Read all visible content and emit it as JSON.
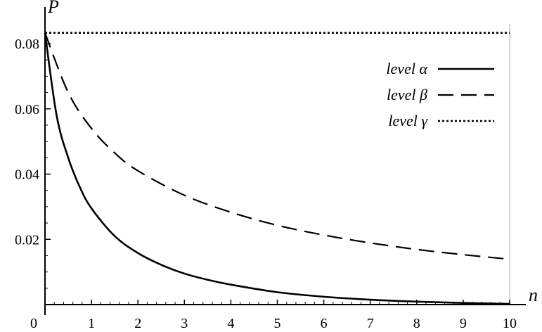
{
  "chart_data": {
    "type": "line",
    "xlabel": "n",
    "ylabel": "P",
    "xlim": [
      0,
      10
    ],
    "ylim": [
      0,
      0.085
    ],
    "x_ticks": [
      "0",
      "1",
      "2",
      "3",
      "4",
      "5",
      "6",
      "7",
      "8",
      "9",
      "10"
    ],
    "y_ticks": [
      "0.02",
      "0.04",
      "0.06",
      "0.08"
    ],
    "grid": false,
    "legend_position": "top-right",
    "series": [
      {
        "name": "level α",
        "style": "solid",
        "color": "#000000",
        "x": [
          0,
          0.25,
          0.5,
          0.75,
          1,
          1.5,
          2,
          2.5,
          3,
          3.5,
          4,
          5,
          6,
          7,
          8,
          9,
          10
        ],
        "y": [
          0.0833,
          0.058,
          0.045,
          0.036,
          0.0295,
          0.021,
          0.0158,
          0.0122,
          0.0095,
          0.0076,
          0.0061,
          0.0038,
          0.0024,
          0.0015,
          0.0009,
          0.0005,
          0.0002
        ]
      },
      {
        "name": "level β",
        "style": "dashed",
        "color": "#000000",
        "x": [
          0,
          0.5,
          1,
          1.5,
          2,
          3,
          4,
          5,
          6,
          7,
          8,
          9,
          10
        ],
        "y": [
          0.0833,
          0.065,
          0.054,
          0.0465,
          0.041,
          0.0335,
          0.0283,
          0.0243,
          0.0213,
          0.0189,
          0.0169,
          0.0153,
          0.0139
        ]
      },
      {
        "name": "level γ",
        "style": "dotted",
        "color": "#000000",
        "x": [
          0,
          10
        ],
        "y": [
          0.0833,
          0.0833
        ]
      }
    ]
  }
}
